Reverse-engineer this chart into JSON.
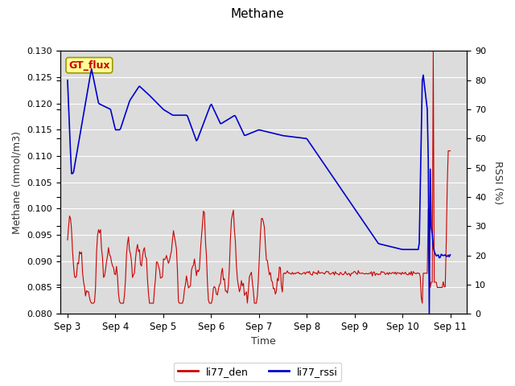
{
  "title": "Methane",
  "ylabel_left": "Methane (mmol/m3)",
  "ylabel_right": "RSSI (%)",
  "xlabel": "Time",
  "ylim_left": [
    0.08,
    0.13
  ],
  "ylim_right": [
    0,
    90
  ],
  "yticks_left": [
    0.08,
    0.085,
    0.09,
    0.095,
    0.1,
    0.105,
    0.11,
    0.115,
    0.12,
    0.125,
    0.13
  ],
  "yticks_right": [
    0,
    10,
    20,
    30,
    40,
    50,
    60,
    70,
    80,
    90
  ],
  "xtick_labels": [
    "Sep 3",
    "Sep 4",
    "Sep 5",
    "Sep 6",
    "Sep 7",
    "Sep 8",
    "Sep 9",
    "Sep 10",
    "Sep 11"
  ],
  "background_color": "#e8e8e8",
  "plot_bg_color": "#dcdcdc",
  "grid_color": "#ffffff",
  "line_color_den": "#cc0000",
  "line_color_rssi": "#0000cc",
  "legend_label_den": "li77_den",
  "legend_label_rssi": "li77_rssi",
  "annotation_text": "GT_flux",
  "annotation_color": "#cc0000",
  "annotation_bg": "#ffff99",
  "annotation_border": "#999900"
}
